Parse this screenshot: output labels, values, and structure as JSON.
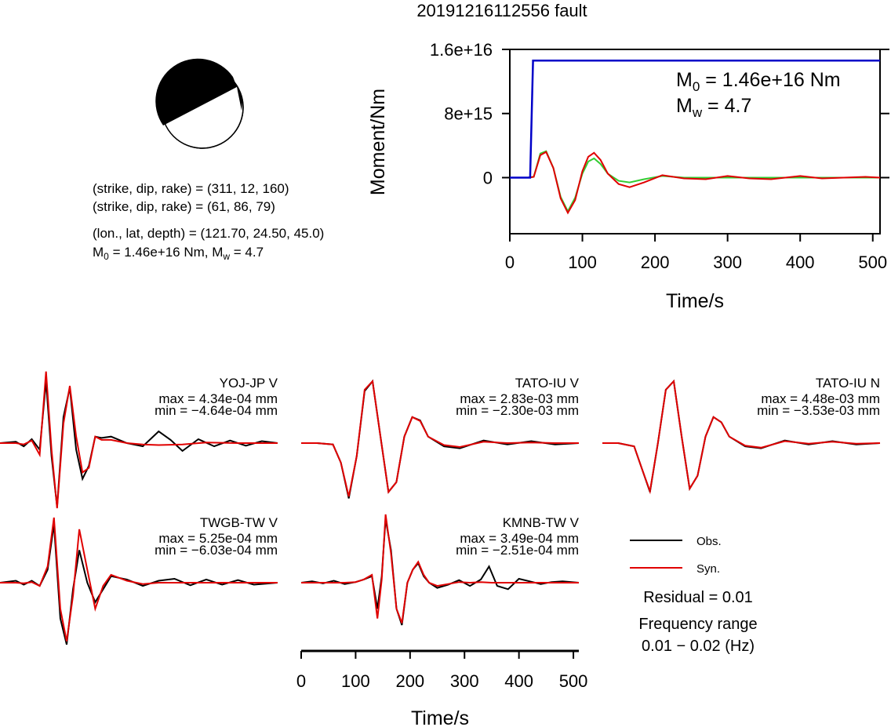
{
  "page": {
    "title": "20191216112556 fault"
  },
  "info": {
    "nodal1": "(strike, dip, rake) = (311, 12, 160)",
    "nodal2": "(strike, dip, rake) = (61, 86, 79)",
    "location": "(lon., lat, depth) = (121.70, 24.50, 45.0)",
    "m0_prefix": "M",
    "m0_sub": "0",
    "m0_text": " = 1.46e+16 Nm, M",
    "mw_sub": "w",
    "mw_text": " = 4.7"
  },
  "colors": {
    "observed": "#000000",
    "synthetic": "#e00000",
    "moment_rate": "#0000c8",
    "moment_green": "#33cc33"
  },
  "chart_data": [
    {
      "type": "line",
      "name": "moment-function",
      "xlabel": "Time/s",
      "ylabel": "Moment/Nm",
      "xlim": [
        0,
        510
      ],
      "ylim": [
        -7000000000000000.0,
        1.6e+16
      ],
      "xticks": [
        0,
        100,
        200,
        300,
        400,
        500
      ],
      "xtick_labels": [
        "0",
        "100",
        "200",
        "300",
        "400",
        "500"
      ],
      "yticks": [
        0,
        8000000000000000.0,
        1.6e+16
      ],
      "ytick_labels": [
        "0",
        "8e+15",
        "1.6e+16"
      ],
      "annotation_m0": {
        "prefix": "M",
        "sub": "0",
        "text": " = 1.46e+16 Nm"
      },
      "annotation_mw": {
        "prefix": "M",
        "sub": "w",
        "text": " = 4.7"
      },
      "step": {
        "x": [
          0,
          28,
          32,
          510
        ],
        "y": [
          0,
          0,
          1.46e+16,
          1.46e+16
        ]
      },
      "stf_red": {
        "x": [
          0,
          25,
          33,
          42,
          50,
          60,
          70,
          80,
          90,
          100,
          108,
          116,
          125,
          135,
          150,
          165,
          185,
          210,
          240,
          270,
          300,
          330,
          360,
          400,
          430,
          460,
          490,
          510
        ],
        "y": [
          0,
          0,
          100000000000000.0,
          2800000000000000.0,
          3200000000000000.0,
          1200000000000000.0,
          -2600000000000000.0,
          -4400000000000000.0,
          -2800000000000000.0,
          800000000000000.0,
          2600000000000000.0,
          3100000000000000.0,
          2200000000000000.0,
          500000000000000.0,
          -800000000000000.0,
          -1200000000000000.0,
          -600000000000000.0,
          300000000000000.0,
          -100000000000000.0,
          -200000000000000.0,
          200000000000000.0,
          -100000000000000.0,
          -200000000000000.0,
          200000000000000.0,
          -100000000000000.0,
          0,
          100000000000000.0,
          0
        ]
      },
      "stf_green": {
        "x": [
          0,
          25,
          33,
          42,
          50,
          60,
          70,
          80,
          90,
          100,
          108,
          116,
          125,
          135,
          150,
          165,
          185,
          210,
          240,
          270,
          300,
          510
        ],
        "y": [
          0,
          0,
          100000000000000.0,
          3000000000000000.0,
          3300000000000000.0,
          1200000000000000.0,
          -2400000000000000.0,
          -4200000000000000.0,
          -2500000000000000.0,
          500000000000000.0,
          2000000000000000.0,
          2400000000000000.0,
          1700000000000000.0,
          500000000000000.0,
          -400000000000000.0,
          -600000000000000.0,
          -200000000000000.0,
          200000000000000.0,
          0,
          0,
          0,
          0
        ]
      }
    },
    {
      "type": "line",
      "name": "waveforms",
      "xlabel": "Time/s",
      "xlim": [
        0,
        510
      ],
      "xticks": [
        0,
        100,
        200,
        300,
        400,
        500
      ],
      "xtick_labels": [
        "0",
        "100",
        "200",
        "300",
        "400",
        "500"
      ],
      "legend": {
        "observed": "Obs.",
        "synthetic": "Syn."
      },
      "residual": "Residual = 0.01",
      "frequency_title": "Frequency range",
      "frequency_range": "0.01 − 0.02 (Hz)",
      "stations": [
        {
          "name": "YOJ-JP V",
          "max": "max = 4.34e-04 mm",
          "min": "min = −4.64e-04 mm",
          "obs": {
            "x": [
              0,
              20,
              30,
              40,
              50,
              58,
              65,
              72,
              80,
              88,
              96,
              104,
              112,
              120,
              128,
              140,
              160,
              180,
              200,
              215,
              230,
              250,
              270,
              290,
              310,
              330,
              350
            ],
            "y": [
              0,
              0.02,
              -0.05,
              0.06,
              -0.1,
              0.95,
              -0.2,
              -0.98,
              0.4,
              0.85,
              -0.1,
              -0.55,
              -0.35,
              0.1,
              0.08,
              0.1,
              0.0,
              -0.05,
              0.18,
              0.05,
              -0.12,
              0.06,
              -0.05,
              0.04,
              -0.04,
              0.03,
              0
            ]
          },
          "syn": {
            "x": [
              0,
              20,
              30,
              40,
              50,
              58,
              65,
              72,
              80,
              88,
              96,
              104,
              112,
              120,
              128,
              140,
              160,
              180,
              200,
              230,
              260,
              300,
              350
            ],
            "y": [
              0,
              0,
              -0.02,
              0.04,
              -0.18,
              1.1,
              -0.1,
              -1.0,
              0.3,
              0.88,
              0.1,
              -0.45,
              -0.38,
              0.1,
              0.05,
              0.05,
              0.0,
              -0.02,
              -0.03,
              -0.02,
              0.01,
              0,
              0
            ]
          }
        },
        {
          "name": "TATO-IU V",
          "max": "max = 2.83e-03 mm",
          "min": "min = −2.30e-03 mm",
          "obs": {
            "x": [
              0,
              20,
              40,
              50,
              60,
              70,
              80,
              90,
              100,
              110,
              120,
              130,
              140,
              150,
              160,
              180,
              200,
              230,
              260,
              290,
              320,
              350
            ],
            "y": [
              0,
              0,
              -0.02,
              -0.3,
              -0.85,
              -0.2,
              0.8,
              0.95,
              0.1,
              -0.75,
              -0.6,
              0.1,
              0.4,
              0.35,
              0.1,
              -0.05,
              -0.08,
              0.04,
              -0.02,
              0.03,
              -0.02,
              0
            ]
          },
          "syn": {
            "x": [
              0,
              20,
              40,
              50,
              60,
              70,
              80,
              90,
              100,
              110,
              120,
              130,
              140,
              150,
              160,
              180,
              200,
              230,
              260,
              290,
              320,
              350
            ],
            "y": [
              0,
              0,
              -0.02,
              -0.3,
              -0.82,
              -0.2,
              0.82,
              0.95,
              0.1,
              -0.75,
              -0.6,
              0.1,
              0.4,
              0.34,
              0.1,
              -0.03,
              -0.06,
              0.02,
              0.0,
              0.01,
              0,
              0
            ]
          }
        },
        {
          "name": "TATO-IU N",
          "max": "max = 4.48e-03 mm",
          "min": "min = −3.53e-03 mm",
          "obs": {
            "x": [
              0,
              20,
              40,
              50,
              60,
              70,
              80,
              90,
              100,
              110,
              120,
              130,
              140,
              150,
              160,
              180,
              200,
              230,
              260,
              290,
              320,
              350
            ],
            "y": [
              0,
              0,
              -0.05,
              -0.4,
              -0.75,
              0.0,
              0.82,
              0.95,
              0.1,
              -0.7,
              -0.5,
              0.1,
              0.4,
              0.32,
              0.1,
              -0.05,
              -0.08,
              0.04,
              -0.02,
              0.03,
              -0.02,
              0
            ]
          },
          "syn": {
            "x": [
              0,
              20,
              40,
              50,
              60,
              70,
              80,
              90,
              100,
              110,
              120,
              130,
              140,
              150,
              160,
              180,
              200,
              230,
              260,
              290,
              320,
              350
            ],
            "y": [
              0,
              0,
              -0.05,
              -0.4,
              -0.74,
              0.0,
              0.82,
              0.95,
              0.1,
              -0.7,
              -0.5,
              0.1,
              0.4,
              0.32,
              0.1,
              -0.04,
              -0.07,
              0.03,
              -0.01,
              0.02,
              -0.01,
              0
            ]
          }
        },
        {
          "name": "TWGB-TW V",
          "max": "max = 5.25e-04 mm",
          "min": "min = −6.03e-04 mm",
          "obs": {
            "x": [
              0,
              20,
              30,
              40,
              50,
              60,
              68,
              76,
              84,
              92,
              100,
              110,
              120,
              130,
              140,
              160,
              180,
              200,
              220,
              240,
              260,
              280,
              300,
              320,
              350
            ],
            "y": [
              0,
              0.03,
              -0.03,
              0.03,
              -0.05,
              0.2,
              0.9,
              -0.55,
              -0.95,
              -0.1,
              0.5,
              0.0,
              -0.3,
              -0.1,
              0.1,
              0.05,
              -0.05,
              0.03,
              0.06,
              -0.04,
              0.05,
              -0.03,
              0.04,
              -0.03,
              0
            ]
          },
          "syn": {
            "x": [
              0,
              20,
              30,
              40,
              50,
              60,
              68,
              76,
              84,
              92,
              100,
              110,
              120,
              130,
              140,
              160,
              180,
              200,
              240,
              280,
              320,
              350
            ],
            "y": [
              0,
              0,
              -0.01,
              0.01,
              -0.05,
              0.25,
              1.0,
              -0.4,
              -0.9,
              -0.2,
              0.82,
              0.2,
              -0.4,
              -0.05,
              0.12,
              0.03,
              -0.02,
              0,
              0,
              0,
              0,
              0
            ]
          }
        },
        {
          "name": "KMNB-TW V",
          "max": "max = 3.49e-04 mm",
          "min": "min = −2.51e-04 mm",
          "obs": {
            "x": [
              0,
              20,
              40,
              60,
              80,
              100,
              115,
              130,
              140,
              148,
              155,
              165,
              175,
              185,
              195,
              205,
              215,
              225,
              235,
              250,
              270,
              290,
              310,
              330,
              345,
              360,
              380,
              400,
              420,
              440,
              460,
              480,
              510
            ],
            "y": [
              0,
              0.02,
              -0.01,
              0.03,
              -0.02,
              0.01,
              0.05,
              0.1,
              -0.4,
              0.1,
              0.98,
              0.5,
              -0.4,
              -0.65,
              0.0,
              0.2,
              0.3,
              0.1,
              0.0,
              -0.08,
              -0.03,
              0.04,
              -0.05,
              0.05,
              0.25,
              -0.05,
              -0.1,
              0.06,
              0.02,
              -0.02,
              0.01,
              0.02,
              0
            ]
          },
          "syn": {
            "x": [
              0,
              20,
              40,
              60,
              80,
              100,
              115,
              130,
              140,
              148,
              155,
              165,
              175,
              185,
              195,
              205,
              215,
              225,
              235,
              250,
              270,
              290,
              310,
              330,
              350,
              400,
              450,
              510
            ],
            "y": [
              0,
              0,
              0,
              0,
              0,
              0.01,
              0.05,
              0.12,
              -0.55,
              0.05,
              1.05,
              0.45,
              -0.4,
              -0.62,
              0.0,
              0.2,
              0.32,
              0.12,
              0.0,
              -0.05,
              -0.02,
              0.01,
              0.0,
              0.01,
              0,
              0,
              0,
              0
            ]
          }
        }
      ]
    }
  ]
}
